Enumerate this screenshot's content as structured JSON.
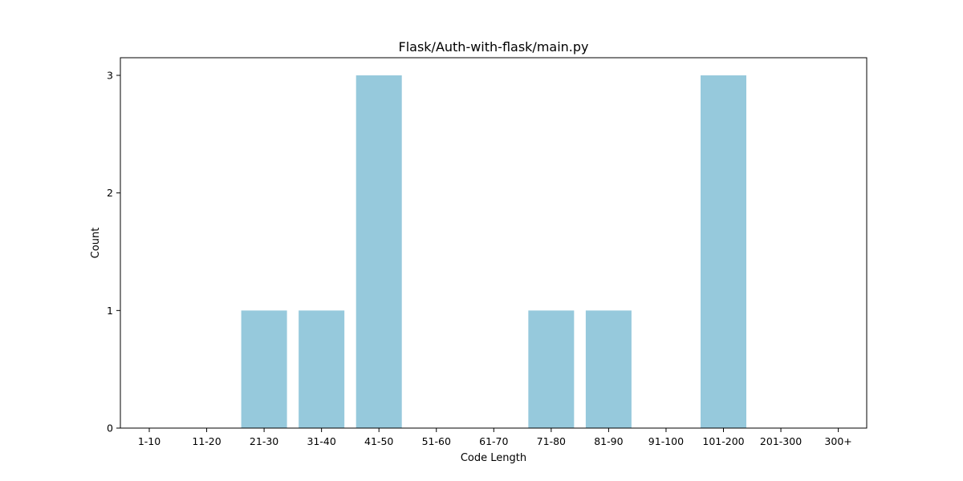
{
  "chart_data": {
    "type": "bar",
    "title": "Flask/Auth-with-flask/main.py",
    "xlabel": "Code Length",
    "ylabel": "Count",
    "categories": [
      "1-10",
      "11-20",
      "21-30",
      "31-40",
      "41-50",
      "51-60",
      "61-70",
      "71-80",
      "81-90",
      "91-100",
      "101-200",
      "201-300",
      "300+"
    ],
    "values": [
      0,
      0,
      1,
      1,
      3,
      0,
      0,
      1,
      1,
      0,
      3,
      0,
      0
    ],
    "yticks": [
      0,
      1,
      2,
      3
    ],
    "ylim": [
      0,
      3.15
    ],
    "bar_color": "#96c9dc",
    "grid": false,
    "legend": "none"
  }
}
